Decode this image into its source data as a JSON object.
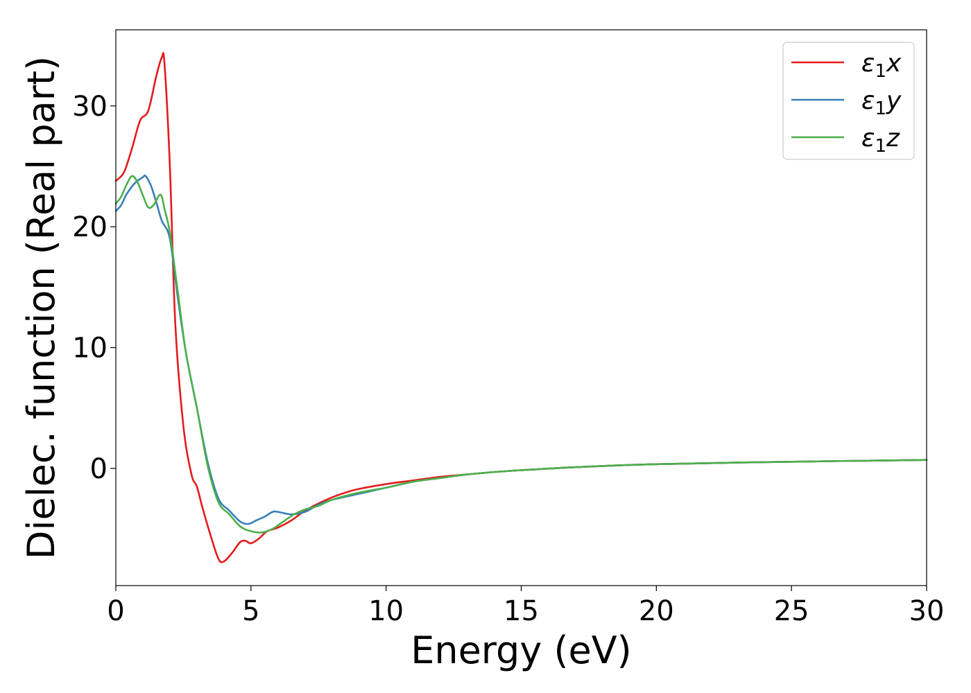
{
  "chart_data": {
    "type": "line",
    "xlabel": "Energy (eV)",
    "ylabel": "Dielec. function (Real part)",
    "xlim": [
      0,
      30
    ],
    "ylim": [
      -9.7,
      36.3
    ],
    "xticks": [
      0,
      5,
      10,
      15,
      20,
      25,
      30
    ],
    "xtick_labels": [
      "0",
      "5",
      "10",
      "15",
      "20",
      "25",
      "30"
    ],
    "yticks": [
      0,
      10,
      20,
      30
    ],
    "ytick_labels": [
      "0",
      "10",
      "20",
      "30"
    ],
    "grid": false,
    "legend_position": "top-right",
    "series": [
      {
        "name": "ε1x",
        "name_base": "ε",
        "name_sub": "1",
        "name_suffix": "x",
        "color": "#e41a1c",
        "x": [
          0,
          0.3,
          0.6,
          0.9,
          1.2,
          1.5,
          1.7,
          1.8,
          2.0,
          2.2,
          2.5,
          2.8,
          3.0,
          3.2,
          3.5,
          3.8,
          4.0,
          4.3,
          4.6,
          4.8,
          5.0,
          5.3,
          5.6,
          6.0,
          6.5,
          7.0,
          7.5,
          8.0,
          8.5,
          9.0,
          10.0,
          11.0,
          12.0,
          13.0,
          14.0,
          15.0,
          17.0,
          20.0,
          25.0,
          30.0
        ],
        "y": [
          23.8,
          24.5,
          26.5,
          28.8,
          29.6,
          32.5,
          34.0,
          33.5,
          25.0,
          12.0,
          3.5,
          -0.5,
          -1.5,
          -3.2,
          -5.5,
          -7.5,
          -7.7,
          -7.0,
          -6.1,
          -6.0,
          -6.2,
          -5.8,
          -5.2,
          -4.9,
          -4.3,
          -3.5,
          -2.9,
          -2.4,
          -2.0,
          -1.7,
          -1.3,
          -1.0,
          -0.7,
          -0.5,
          -0.3,
          -0.15,
          0.1,
          0.35,
          0.55,
          0.7
        ]
      },
      {
        "name": "ε1y",
        "name_base": "ε",
        "name_sub": "1",
        "name_suffix": "y",
        "color": "#377eb8",
        "x": [
          0,
          0.2,
          0.4,
          0.7,
          1.0,
          1.1,
          1.3,
          1.5,
          1.7,
          2.0,
          2.3,
          2.6,
          3.0,
          3.4,
          3.8,
          4.2,
          4.6,
          4.9,
          5.2,
          5.5,
          5.8,
          6.0,
          6.5,
          7.0,
          7.5,
          8.0,
          9.0,
          10.0,
          11.0,
          12.0,
          13.0,
          14.0,
          15.0,
          17.0,
          20.0,
          25.0,
          30.0
        ],
        "y": [
          21.3,
          21.8,
          22.7,
          23.6,
          24.1,
          24.2,
          23.4,
          22.0,
          20.5,
          19.0,
          14.0,
          9.5,
          5.0,
          0.5,
          -2.5,
          -3.5,
          -4.4,
          -4.6,
          -4.3,
          -4.0,
          -3.6,
          -3.6,
          -3.8,
          -3.6,
          -3.0,
          -2.6,
          -2.1,
          -1.6,
          -1.1,
          -0.8,
          -0.5,
          -0.3,
          -0.15,
          0.1,
          0.35,
          0.55,
          0.7
        ]
      },
      {
        "name": "ε1z",
        "name_base": "ε",
        "name_sub": "1",
        "name_suffix": "z",
        "color": "#4daf4a",
        "x": [
          0,
          0.2,
          0.4,
          0.6,
          0.8,
          1.0,
          1.2,
          1.4,
          1.6,
          1.7,
          1.8,
          2.0,
          2.3,
          2.6,
          3.0,
          3.4,
          3.8,
          4.2,
          4.6,
          5.0,
          5.4,
          5.8,
          6.2,
          6.6,
          7.0,
          7.5,
          8.0,
          9.0,
          10.0,
          11.0,
          12.0,
          13.0,
          14.0,
          15.0,
          17.0,
          20.0,
          25.0,
          30.0
        ],
        "y": [
          21.9,
          22.5,
          23.5,
          24.2,
          23.7,
          22.6,
          21.6,
          21.8,
          22.6,
          22.5,
          21.5,
          19.5,
          14.5,
          9.5,
          5.0,
          0.2,
          -2.8,
          -3.8,
          -4.8,
          -5.2,
          -5.3,
          -5.0,
          -4.4,
          -3.8,
          -3.4,
          -3.1,
          -2.6,
          -2.0,
          -1.6,
          -1.1,
          -0.8,
          -0.5,
          -0.3,
          -0.15,
          0.1,
          0.35,
          0.55,
          0.7
        ]
      }
    ]
  }
}
